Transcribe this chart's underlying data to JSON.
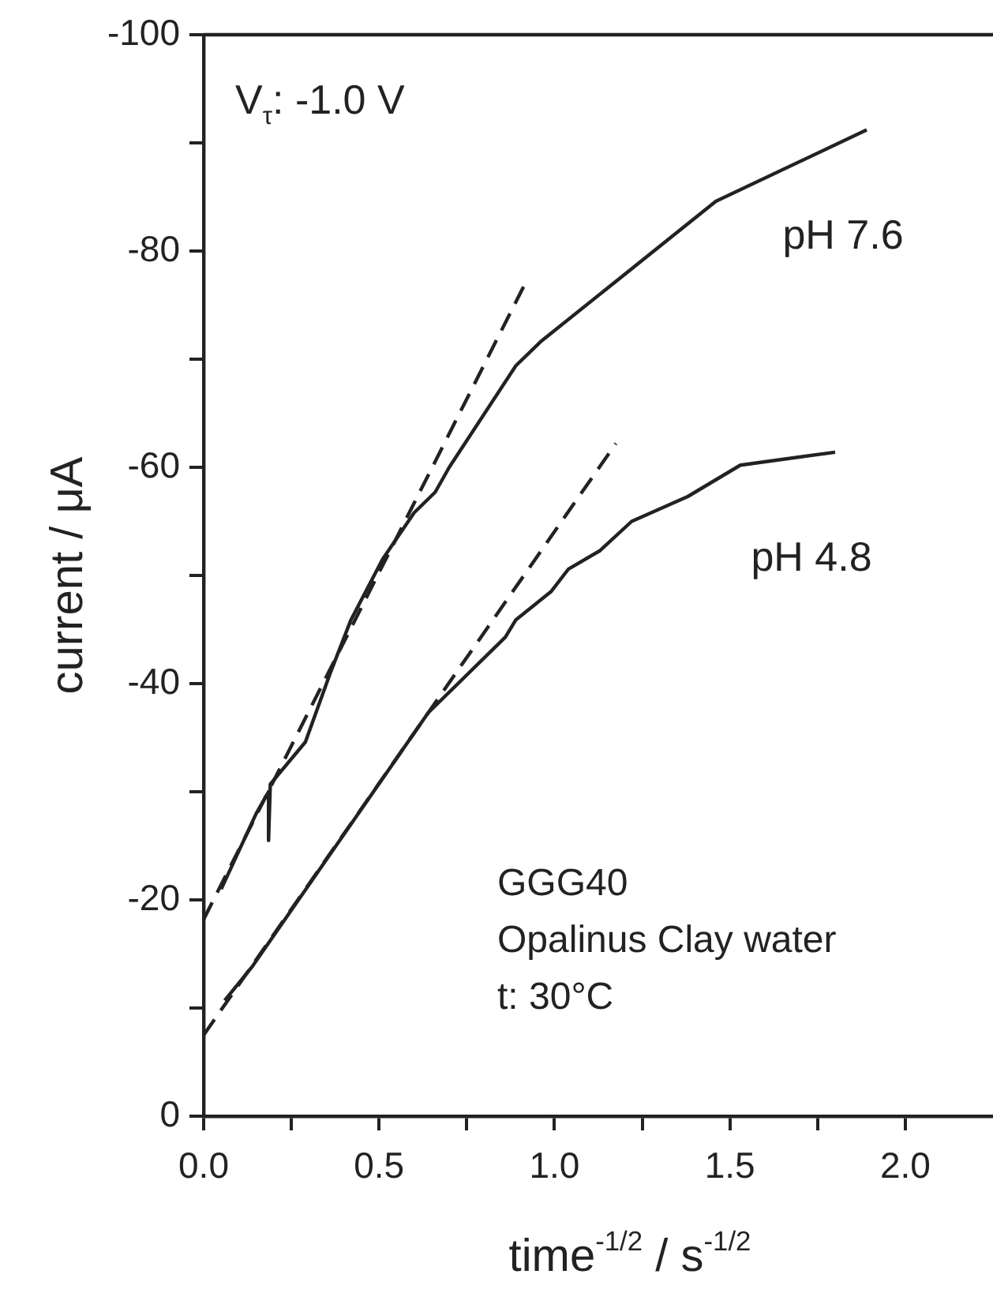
{
  "chart_data": {
    "type": "line",
    "xlabel": "time$^{-1/2}$ / s$^{-1/2}$",
    "ylabel": "current / μA",
    "xlim": [
      0,
      2.25
    ],
    "ylim": [
      0,
      -100
    ],
    "xticks": [
      {
        "value": 0,
        "label": "0.0"
      },
      {
        "value": 0.25,
        "label": null
      },
      {
        "value": 0.5,
        "label": "0.5"
      },
      {
        "value": 0.75,
        "label": null
      },
      {
        "value": 1,
        "label": "1.0"
      },
      {
        "value": 1.25,
        "label": null
      },
      {
        "value": 1.5,
        "label": "1.5"
      },
      {
        "value": 1.75,
        "label": null
      },
      {
        "value": 2,
        "label": "2.0"
      }
    ],
    "yticks": [
      0,
      {
        "value": -10,
        "label": null
      },
      -20,
      {
        "value": -30,
        "label": null
      },
      -40,
      {
        "value": -50,
        "label": null
      },
      -60,
      {
        "value": -70,
        "label": null
      },
      -80,
      {
        "value": -90,
        "label": null
      },
      -100
    ],
    "grid": false,
    "legend": false,
    "marker": "none",
    "annotations": [
      "V$_{τ}$: -1.0 V",
      "GGG40",
      "Opalinus Clay water",
      "t: 30°C"
    ],
    "series": [
      {
        "name": "pH 7.6",
        "color": "#222222",
        "line_style": "solid",
        "x": [
          0.05,
          0.1,
          0.15,
          0.185,
          0.185,
          0.19,
          0.29,
          0.36,
          0.42,
          0.51,
          0.6,
          0.66,
          0.7,
          0.89,
          0.96,
          1.46,
          1.89
        ],
        "values": [
          -21,
          -24.5,
          -28,
          -30,
          -25.5,
          -30.7,
          -34.6,
          -40.9,
          -45.9,
          -51.5,
          -55.8,
          -57.7,
          -60,
          -69.4,
          -71.6,
          -84.6,
          -91.2
        ]
      },
      {
        "name": "pH 4.8",
        "color": "#222222",
        "line_style": "solid",
        "x": [
          0.06,
          0.14,
          0.64,
          0.86,
          0.89,
          0.99,
          1.04,
          1.13,
          1.22,
          1.38,
          1.53,
          1.8
        ],
        "values": [
          -10.7,
          -13.9,
          -37.3,
          -44.3,
          -45.9,
          -48.5,
          -50.6,
          -52.3,
          -55,
          -57.3,
          -60.2,
          -61.4
        ]
      },
      {
        "color": "#222222",
        "line_style": "dashed",
        "x": [
          0,
          0.915
        ],
        "values": [
          -18.2,
          -76.9
        ]
      },
      {
        "color": "#222222",
        "line_style": "dashed",
        "x": [
          0,
          1.175
        ],
        "values": [
          -7.5,
          -62.2
        ]
      }
    ]
  }
}
